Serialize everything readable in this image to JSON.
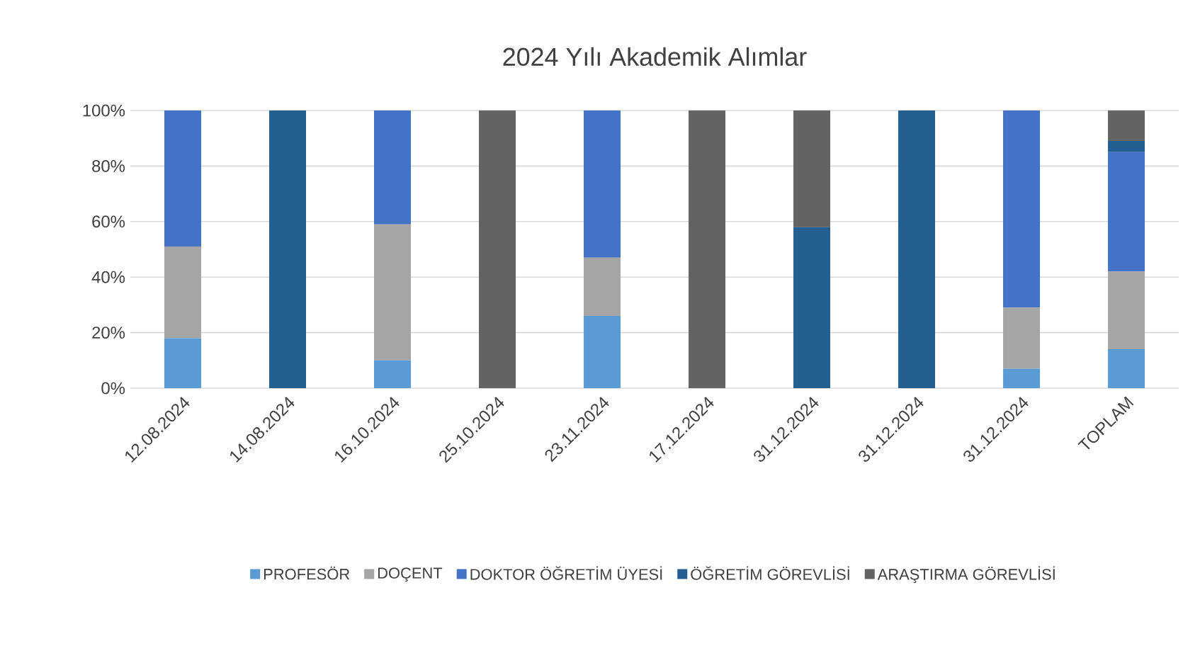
{
  "chart_data": {
    "type": "bar",
    "stacked": true,
    "title": "2024 Yılı Akademik Alımlar",
    "categories": [
      "12.08.2024",
      "14.08.2024",
      "16.10.2024",
      "25.10.2024",
      "23.11.2024",
      "17.12.2024",
      "31.12.2024",
      "31.12.2024",
      "31.12.2024",
      "TOPLAM"
    ],
    "series": [
      {
        "name": "PROFESÖR",
        "color": "#5b9bd5",
        "values": [
          18,
          0,
          10,
          0,
          26,
          0,
          0,
          0,
          7,
          14
        ]
      },
      {
        "name": "DOÇENT",
        "color": "#a5a5a5",
        "values": [
          33,
          0,
          49,
          0,
          21,
          0,
          0,
          0,
          22,
          28
        ]
      },
      {
        "name": "DOKTOR ÖĞRETİM ÜYESİ",
        "color": "#4472c4",
        "values": [
          49,
          0,
          41,
          0,
          53,
          0,
          0,
          0,
          71,
          43
        ]
      },
      {
        "name": "ÖĞRETİM GÖREVLİSİ",
        "color": "#255e91",
        "values": [
          0,
          100,
          0,
          0,
          0,
          0,
          58,
          100,
          0,
          4
        ]
      },
      {
        "name": "ARAŞTIRMA GÖREVLİSİ",
        "color": "#636363",
        "values": [
          0,
          0,
          0,
          100,
          0,
          100,
          42,
          0,
          0,
          11
        ]
      }
    ],
    "ylim": [
      0,
      100
    ],
    "yticks": [
      {
        "value": 0,
        "label": "0%"
      },
      {
        "value": 20,
        "label": "20%"
      },
      {
        "value": 40,
        "label": "40%"
      },
      {
        "value": 60,
        "label": "60%"
      },
      {
        "value": 80,
        "label": "80%"
      },
      {
        "value": 100,
        "label": "100%"
      }
    ],
    "grid": "y",
    "legend": "bottom"
  }
}
